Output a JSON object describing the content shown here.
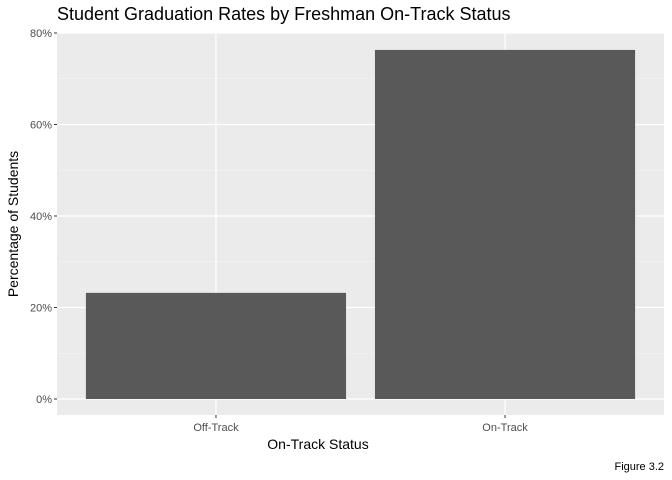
{
  "chart_data": {
    "type": "bar",
    "title": "Student Graduation Rates by Freshman On-Track Status",
    "xlabel": "On-Track Status",
    "ylabel": "Percentage of Students",
    "caption": "Figure 3.2",
    "categories": [
      "Off-Track",
      "On-Track"
    ],
    "values": [
      23.2,
      76.3
    ],
    "ylim": [
      0,
      80
    ],
    "yticks": [
      0,
      20,
      40,
      60,
      80
    ],
    "ytick_labels": [
      "0%",
      "20%",
      "40%",
      "60%",
      "80%"
    ],
    "grid": true,
    "legend": "none",
    "colors": {
      "bar": "#595959",
      "panel": "#ebebeb",
      "grid_major": "#ffffff",
      "grid_minor": "#f5f5f5"
    }
  }
}
